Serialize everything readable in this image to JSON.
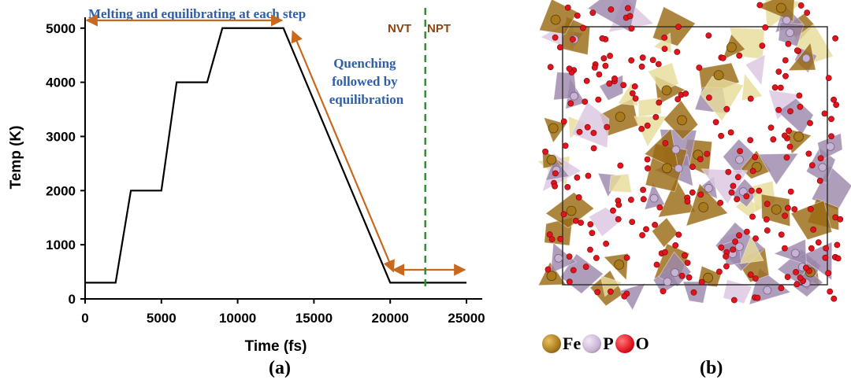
{
  "chart_data": {
    "type": "line",
    "xlabel": "Time (fs)",
    "ylabel": "Temp (K)",
    "xlim": [
      0,
      25000
    ],
    "ylim": [
      0,
      5200
    ],
    "xticks": [
      0,
      5000,
      10000,
      15000,
      20000,
      25000
    ],
    "yticks": [
      0,
      1000,
      2000,
      3000,
      4000,
      5000
    ],
    "grid": false,
    "series": [
      {
        "color": "#000000",
        "x": [
          0,
          2000,
          3000,
          5000,
          6000,
          8000,
          9000,
          13000,
          20000,
          25000
        ],
        "y": [
          300,
          300,
          2000,
          2000,
          4000,
          4000,
          5000,
          5000,
          300,
          300
        ]
      }
    ],
    "annotations": {
      "melting": {
        "text": "Melting and equilibrating at each step",
        "x_from": 0,
        "x_to": 13000,
        "y": 5100
      },
      "quenching": {
        "text": "Quenching followed by equilibration",
        "x_from": 13500,
        "y_from": 5000,
        "x_to": 20000,
        "y_to": 450
      },
      "equilibration_arrow": {
        "x_from": 20000,
        "x_to": 25000,
        "y": 450
      },
      "nvt_label": "NVT",
      "npt_label": "NPT",
      "ensemble_switch_x": 22300
    },
    "colors": {
      "arrow": "#c8691e",
      "label_blue": "#2e5fa8",
      "ensemble_label": "#8b4513",
      "divider": "#3a8a3a"
    }
  },
  "captions": {
    "a": "(a)",
    "b": "(b)"
  },
  "structure_legend": [
    {
      "label": "Fe",
      "color": "#a87a1c"
    },
    {
      "label": "P",
      "color": "#c9b3d4"
    },
    {
      "label": "O",
      "color": "#e0141e"
    }
  ],
  "structure_colors": {
    "fe_polyhedron": "#9a6a14",
    "p_polyhedron": "#9c88ac",
    "fe_pale": "#e8dc9a",
    "p_pale": "#dcc6e2",
    "oxygen": "#e0141e",
    "box": "#333333"
  }
}
